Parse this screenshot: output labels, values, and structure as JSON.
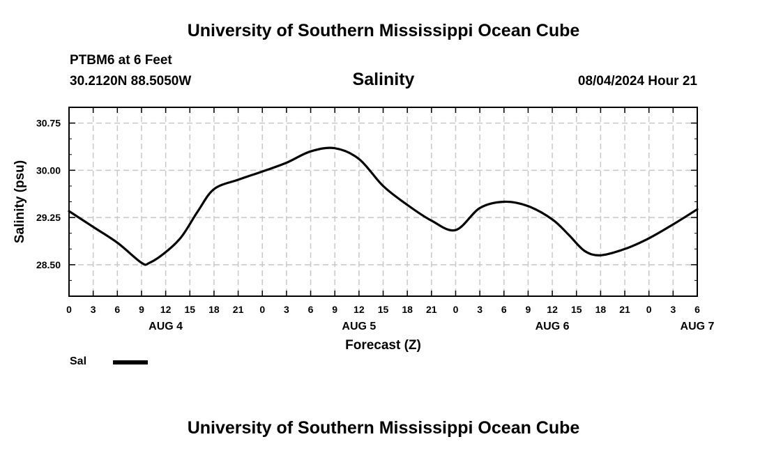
{
  "header": {
    "title": "University of Southern Mississippi Ocean Cube",
    "station": "PTBM6 at 6 Feet",
    "coords": "30.2120N  88.5050W",
    "chart_title": "Salinity",
    "timestamp": "08/04/2024 Hour 21"
  },
  "footer": {
    "title": "University of Southern Mississippi Ocean Cube"
  },
  "legend": {
    "label": "Sal"
  },
  "colors": {
    "line": "#000000",
    "grid": "#c8c8c8",
    "background": "#ffffff"
  },
  "chart_data": {
    "type": "line",
    "title": "Salinity",
    "xlabel": "Forecast (Z)",
    "ylabel": "Salinity (psu)",
    "x_tick_labels": [
      "0",
      "3",
      "6",
      "9",
      "12",
      "15",
      "18",
      "21",
      "0",
      "3",
      "6",
      "9",
      "12",
      "15",
      "18",
      "21",
      "0",
      "3",
      "6",
      "9",
      "12",
      "15",
      "18",
      "21",
      "0",
      "3",
      "6"
    ],
    "date_labels": [
      {
        "label": "AUG 4",
        "tick_index": 4
      },
      {
        "label": "AUG 5",
        "tick_index": 12
      },
      {
        "label": "AUG 6",
        "tick_index": 20
      },
      {
        "label": "AUG 7",
        "tick_index": 26
      }
    ],
    "xlim_hours": [
      0,
      78
    ],
    "y_ticks": [
      "28.50",
      "29.25",
      "30.00",
      "30.75"
    ],
    "ylim": [
      28.0,
      31.0
    ],
    "grid": true,
    "legend_position": "bottom-left",
    "series": [
      {
        "name": "Sal",
        "points": [
          [
            0,
            29.35
          ],
          [
            3,
            29.1
          ],
          [
            6,
            28.85
          ],
          [
            9,
            28.53
          ],
          [
            10,
            28.53
          ],
          [
            12,
            28.7
          ],
          [
            14,
            28.95
          ],
          [
            16,
            29.35
          ],
          [
            18,
            29.7
          ],
          [
            21,
            29.85
          ],
          [
            24,
            29.98
          ],
          [
            27,
            30.12
          ],
          [
            30,
            30.3
          ],
          [
            33,
            30.35
          ],
          [
            36,
            30.18
          ],
          [
            39,
            29.75
          ],
          [
            42,
            29.45
          ],
          [
            45,
            29.2
          ],
          [
            48,
            29.05
          ],
          [
            51,
            29.4
          ],
          [
            54,
            29.5
          ],
          [
            57,
            29.43
          ],
          [
            60,
            29.22
          ],
          [
            62,
            28.98
          ],
          [
            64,
            28.72
          ],
          [
            66,
            28.65
          ],
          [
            69,
            28.75
          ],
          [
            72,
            28.92
          ],
          [
            75,
            29.14
          ],
          [
            78,
            29.38
          ]
        ]
      }
    ]
  }
}
